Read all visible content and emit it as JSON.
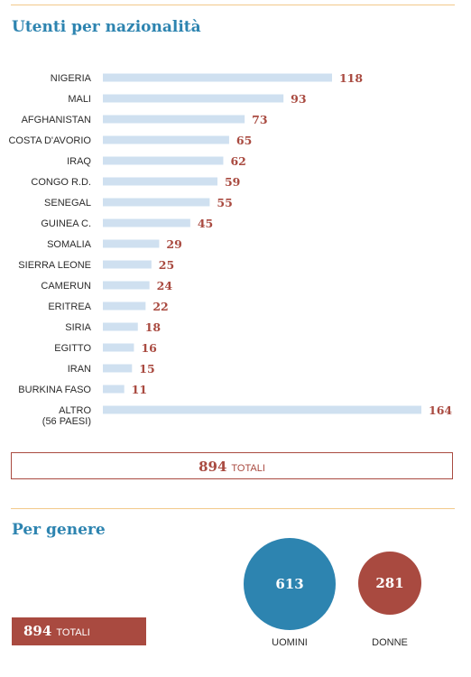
{
  "nationality_section": {
    "title": "Utenti per nazionalità",
    "total_value": "894",
    "total_label": "TOTALI"
  },
  "gender_section": {
    "title": "Per genere",
    "total_value": "894",
    "total_label": "TOTALI",
    "men_label": "UOMINI",
    "women_label": "DONNE",
    "men_value": 613,
    "women_value": 281
  },
  "colors": {
    "title": "#2d84b0",
    "bar": "#cfe0f0",
    "value": "#a94a40",
    "men": "#2d84b0",
    "women": "#a94a40",
    "rule": "#f2c98a"
  },
  "chart_data": [
    {
      "type": "bar",
      "orientation": "horizontal",
      "title": "Utenti per nazionalità",
      "categories": [
        "NIGERIA",
        "MALI",
        "AFGHANISTAN",
        "COSTA D'AVORIO",
        "IRAQ",
        "CONGO R.D.",
        "SENEGAL",
        "GUINEA C.",
        "SOMALIA",
        "SIERRA LEONE",
        "CAMERUN",
        "ERITREA",
        "SIRIA",
        "EGITTO",
        "IRAN",
        "BURKINA FASO",
        "ALTRO"
      ],
      "category_sublabels": [
        "",
        "",
        "",
        "",
        "",
        "",
        "",
        "",
        "",
        "",
        "",
        "",
        "",
        "",
        "",
        "",
        "(56 PAESI)"
      ],
      "values": [
        118,
        93,
        73,
        65,
        62,
        59,
        55,
        45,
        29,
        25,
        24,
        22,
        18,
        16,
        15,
        11,
        164
      ],
      "xlim": [
        0,
        164
      ],
      "grid": false,
      "legend": "none"
    },
    {
      "type": "bubble",
      "title": "Per genere",
      "categories": [
        "UOMINI",
        "DONNE"
      ],
      "values": [
        613,
        281
      ]
    }
  ]
}
